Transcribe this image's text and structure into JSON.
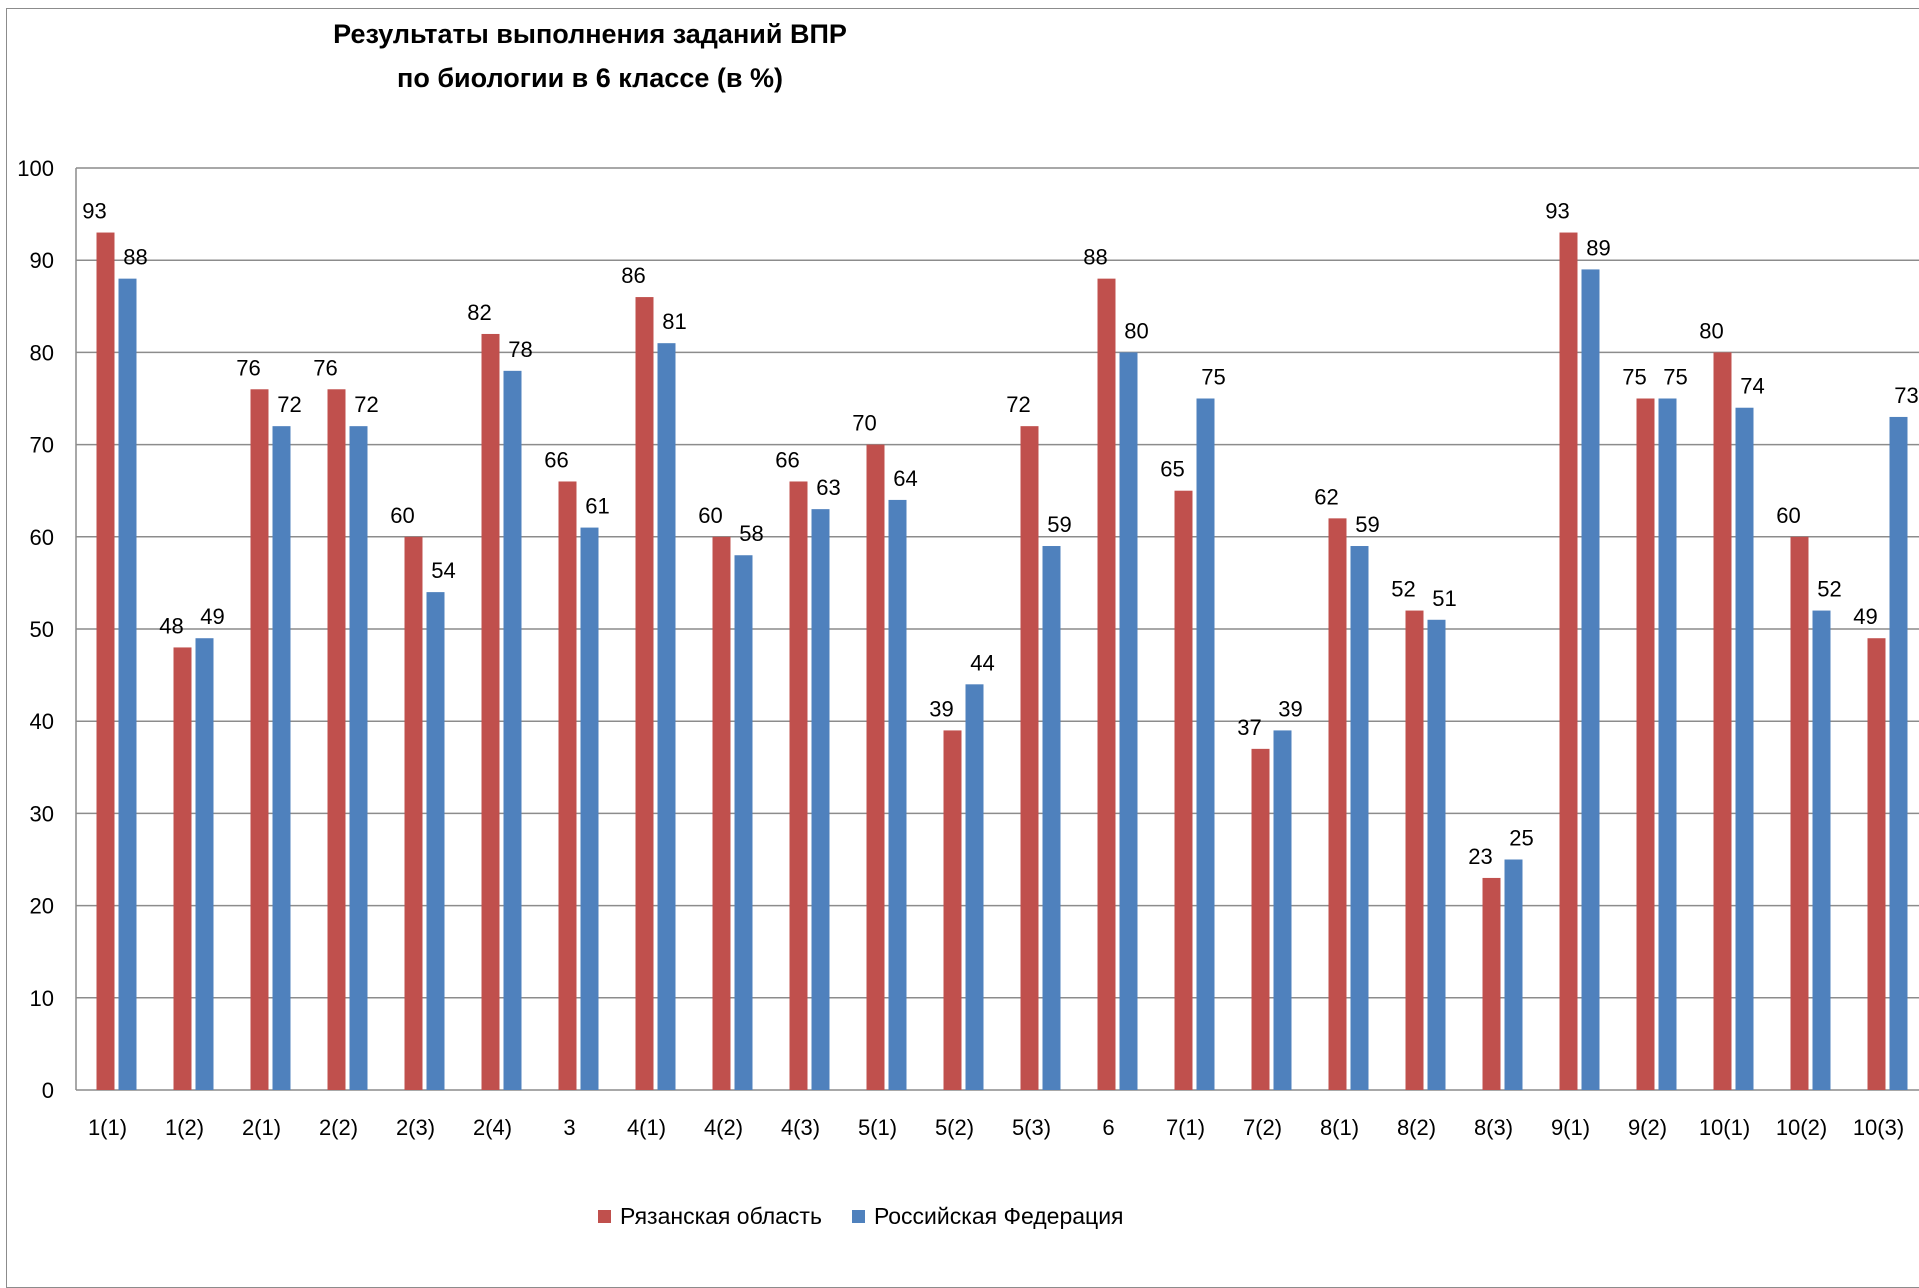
{
  "chart_data": {
    "type": "bar",
    "title": "Результаты выполнения заданий ВПР",
    "subtitle": "по биологии в 6 классе (в %)",
    "xlabel": "",
    "ylabel": "",
    "ylim": [
      0,
      100
    ],
    "yticks": [
      0,
      10,
      20,
      30,
      40,
      50,
      60,
      70,
      80,
      90,
      100
    ],
    "grid": true,
    "legend_position": "bottom",
    "categories": [
      "1(1)",
      "1(2)",
      "2(1)",
      "2(2)",
      "2(3)",
      "2(4)",
      "3",
      "4(1)",
      "4(2)",
      "4(3)",
      "5(1)",
      "5(2)",
      "5(3)",
      "6",
      "7(1)",
      "7(2)",
      "8(1)",
      "8(2)",
      "8(3)",
      "9(1)",
      "9(2)",
      "10(1)",
      "10(2)",
      "10(3)"
    ],
    "series": [
      {
        "name": "Рязанская область",
        "color": "#c0504d",
        "values": [
          93,
          48,
          76,
          76,
          60,
          82,
          66,
          86,
          60,
          66,
          70,
          39,
          72,
          88,
          65,
          37,
          62,
          52,
          23,
          93,
          75,
          80,
          60,
          49
        ]
      },
      {
        "name": "Российская Федерация",
        "color": "#4f81bd",
        "values": [
          88,
          49,
          72,
          72,
          54,
          78,
          61,
          81,
          58,
          63,
          64,
          44,
          59,
          80,
          75,
          39,
          59,
          51,
          25,
          89,
          75,
          74,
          52,
          73
        ]
      }
    ]
  }
}
